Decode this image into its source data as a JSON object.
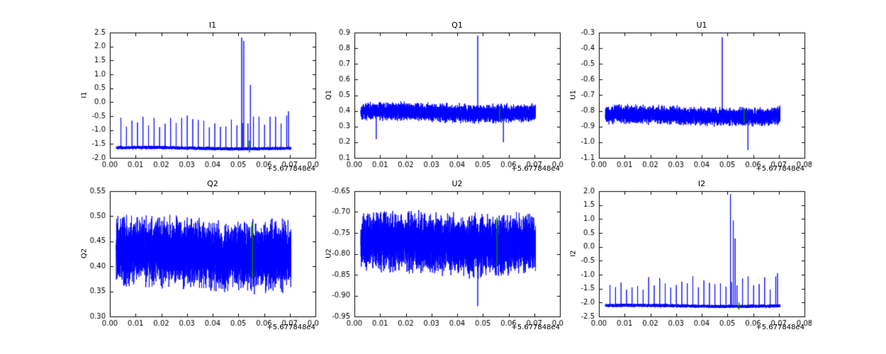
{
  "colors": {
    "line": "#0000ff",
    "marker": "#008000",
    "frame": "#000000",
    "background": "#ffffff"
  },
  "x_axis": {
    "range": [
      0.0,
      0.08
    ],
    "ticks": [
      0.0,
      0.01,
      0.02,
      0.03,
      0.04,
      0.05,
      0.06,
      0.07,
      0.08
    ],
    "labels": [
      "0.00",
      "0.01",
      "0.02",
      "0.03",
      "0.04",
      "0.05",
      "0.06",
      "0.07",
      "0.08"
    ],
    "offset_label": "+5.677848e4"
  },
  "chart_data": [
    {
      "type": "line",
      "title": "I1",
      "ylabel": "I1",
      "ylim": [
        -2.0,
        2.5
      ],
      "yticks": [
        -2.0,
        -1.5,
        -1.0,
        -0.5,
        0.0,
        0.5,
        1.0,
        1.5,
        2.0,
        2.5
      ],
      "ytick_labels": [
        "-2.0",
        "-1.5",
        "-1.0",
        "-0.5",
        "0.0",
        "0.5",
        "1.0",
        "1.5",
        "2.0",
        "2.5"
      ],
      "seed": 11,
      "series": {
        "x_start": 0.0025,
        "x_end": 0.0705,
        "baseline": -1.65,
        "noise": 0.05,
        "wobble": 0.025,
        "pulses": {
          "period": 0.00215,
          "level": -0.68,
          "jitter": 0.45,
          "end_ramp": 18
        },
        "events": [
          [
            0.0513,
            2.32
          ],
          [
            0.0521,
            2.2
          ],
          [
            0.0547,
            0.62
          ],
          [
            0.0695,
            -0.33
          ]
        ]
      },
      "marker": {
        "x": 0.0543,
        "y1": -1.8,
        "y2": -1.38
      }
    },
    {
      "type": "line",
      "title": "Q1",
      "ylabel": "Q1",
      "ylim": [
        0.1,
        0.9
      ],
      "yticks": [
        0.1,
        0.2,
        0.3,
        0.4,
        0.5,
        0.6,
        0.7,
        0.8,
        0.9
      ],
      "ytick_labels": [
        "0.1",
        "0.2",
        "0.3",
        "0.4",
        "0.5",
        "0.6",
        "0.7",
        "0.8",
        "0.9"
      ],
      "seed": 22,
      "series": {
        "x_start": 0.0025,
        "x_end": 0.0705,
        "baseline": 0.39,
        "noise": 0.048,
        "wobble": 0.008,
        "events": [
          [
            0.048,
            0.88
          ],
          [
            0.0085,
            0.22
          ],
          [
            0.058,
            0.2
          ]
        ]
      },
      "marker": {
        "x": 0.0565,
        "y1": 0.335,
        "y2": 0.425
      }
    },
    {
      "type": "line",
      "title": "U1",
      "ylabel": "U1",
      "ylim": [
        -1.1,
        -0.3
      ],
      "yticks": [
        -1.1,
        -1.0,
        -0.9,
        -0.8,
        -0.7,
        -0.6,
        -0.5,
        -0.4,
        -0.3
      ],
      "ytick_labels": [
        "-1.1",
        "-1.0",
        "-0.9",
        "-0.8",
        "-0.7",
        "-0.6",
        "-0.5",
        "-0.4",
        "-0.3"
      ],
      "seed": 33,
      "series": {
        "x_start": 0.0025,
        "x_end": 0.0705,
        "baseline": -0.83,
        "noise": 0.048,
        "wobble": 0.008,
        "events": [
          [
            0.048,
            -0.33
          ],
          [
            0.058,
            -1.05
          ]
        ]
      },
      "marker": {
        "x": 0.0565,
        "y1": -0.875,
        "y2": -0.785
      }
    },
    {
      "type": "line",
      "title": "Q2",
      "ylabel": "Q2",
      "ylim": [
        0.3,
        0.55
      ],
      "yticks": [
        0.3,
        0.35,
        0.4,
        0.45,
        0.5,
        0.55
      ],
      "ytick_labels": [
        "0.30",
        "0.35",
        "0.40",
        "0.45",
        "0.50",
        "0.55"
      ],
      "seed": 44,
      "series": {
        "x_start": 0.0025,
        "x_end": 0.0705,
        "baseline": 0.425,
        "noise": 0.055,
        "wobble": 0.006,
        "events": []
      },
      "marker": {
        "x": 0.0555,
        "y1": 0.378,
        "y2": 0.487
      }
    },
    {
      "type": "line",
      "title": "U2",
      "ylabel": "U2",
      "ylim": [
        -0.95,
        -0.65
      ],
      "yticks": [
        -0.95,
        -0.9,
        -0.85,
        -0.8,
        -0.75,
        -0.7,
        -0.65
      ],
      "ytick_labels": [
        "-0.95",
        "-0.90",
        "-0.85",
        "-0.80",
        "-0.75",
        "-0.70",
        "-0.65"
      ],
      "seed": 55,
      "series": {
        "x_start": 0.0025,
        "x_end": 0.0705,
        "baseline": -0.775,
        "noise": 0.058,
        "wobble": 0.006,
        "events": [
          [
            0.048,
            -0.925
          ]
        ]
      },
      "marker": {
        "x": 0.0555,
        "y1": -0.827,
        "y2": -0.713
      }
    },
    {
      "type": "line",
      "title": "I2",
      "ylabel": "I2",
      "ylim": [
        -2.5,
        2.0
      ],
      "yticks": [
        -2.5,
        -2.0,
        -1.5,
        -1.0,
        -0.5,
        0.0,
        0.5,
        1.0,
        1.5,
        2.0
      ],
      "ytick_labels": [
        "-2.5",
        "-2.0",
        "-1.5",
        "-1.0",
        "-0.5",
        "0.0",
        "0.5",
        "1.0",
        "1.5",
        "2.0"
      ],
      "seed": 66,
      "series": {
        "x_start": 0.0025,
        "x_end": 0.0705,
        "baseline": -2.12,
        "noise": 0.05,
        "wobble": 0.02,
        "pulses": {
          "period": 0.00215,
          "level": -1.3,
          "jitter": 0.5,
          "end_ramp": 0
        },
        "events": [
          [
            0.0512,
            1.9
          ],
          [
            0.0523,
            0.95
          ],
          [
            0.053,
            0.3
          ],
          [
            0.0695,
            -0.95
          ]
        ]
      },
      "marker": {
        "x": 0.0545,
        "y1": -2.25,
        "y2": -2.0
      }
    }
  ]
}
